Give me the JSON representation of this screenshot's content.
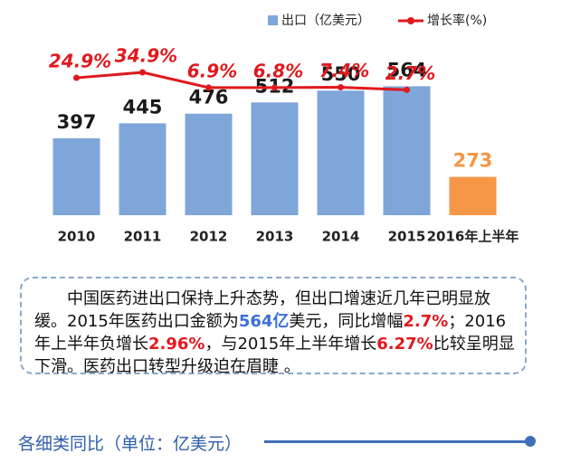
{
  "chart_data": {
    "type": "bar-line",
    "legend": {
      "position": "top-right"
    },
    "categories": [
      "2010",
      "2011",
      "2012",
      "2013",
      "2014",
      "2015",
      "2016年上半年"
    ],
    "series": [
      {
        "name": "出口（亿美元）",
        "type": "bar",
        "color": "#7fa6d8",
        "colors": [
          "#7fa6d8",
          "#7fa6d8",
          "#7fa6d8",
          "#7fa6d8",
          "#7fa6d8",
          "#7fa6d8",
          "#f79646"
        ],
        "values": [
          397,
          445,
          476,
          512,
          550,
          564,
          273
        ]
      },
      {
        "name": "增长率(%)",
        "type": "line",
        "axis": "y2",
        "color": "#e0191e",
        "values": [
          24.9,
          34.9,
          6.9,
          6.8,
          7.4,
          2.7,
          null
        ],
        "value_labels": [
          "24.9%",
          "34.9%",
          "6.9%",
          "6.8%",
          "7.4%",
          "2.7%",
          null
        ]
      }
    ],
    "ylim": [
      150,
      600
    ],
    "y2lim": [
      0,
      40
    ]
  },
  "note": {
    "runs": [
      {
        "text": "中国医药进出口保持上升态势，但出口增速近几年已明显放缓。2015年医药出口金额为",
        "color": "#111111"
      },
      {
        "text": "564亿",
        "color": "#3a6fd8"
      },
      {
        "text": "美元，同比增幅",
        "color": "#111111"
      },
      {
        "text": "2.7%",
        "color": "#e0191e"
      },
      {
        "text": "；2016年上半年负增长",
        "color": "#111111"
      },
      {
        "text": "2.96%",
        "color": "#e0191e"
      },
      {
        "text": "，与2015年上半年增长",
        "color": "#111111"
      },
      {
        "text": "6.27%",
        "color": "#e0191e"
      },
      {
        "text": "比较呈明显下滑。医药出口转型升级迫在眉睫 。",
        "color": "#111111"
      }
    ]
  },
  "footer": {
    "title": "各细类同比（单位：亿美元）"
  }
}
